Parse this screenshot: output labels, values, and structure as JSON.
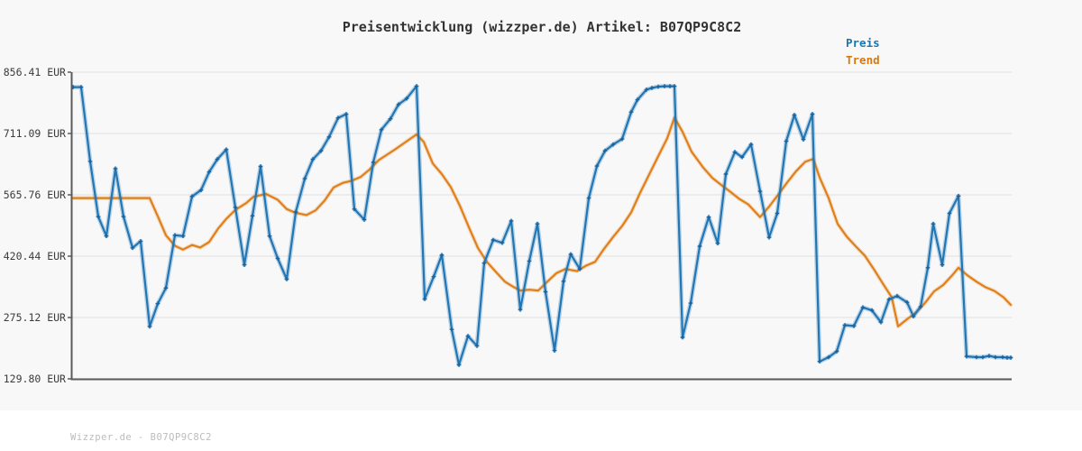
{
  "chart": {
    "title": "Preisentwicklung (wizzper.de) Artikel: B07QP9C8C2",
    "legend_price": "Preis",
    "legend_trend": "Trend",
    "watermark": "Wizzper.de - B07QP9C8C2"
  },
  "colors": {
    "price": "#2276b4",
    "price_marker": "#17639f",
    "trend": "#e0801a",
    "grid": "#e7e7e7",
    "spine": "#5a5a5a",
    "tick_text": "#3b3b3b",
    "title_text": "#333333",
    "legend_price_text": "#1777b4",
    "legend_trend_text": "#d8790e",
    "watermark_text": "#bcbcbc",
    "background": "#f8f8f8",
    "footer_background": "#ffffff"
  },
  "chart_data": {
    "type": "line",
    "title": "Preisentwicklung (wizzper.de) Artikel: B07QP9C8C2",
    "xlabel": "",
    "ylabel": "",
    "unit": "EUR",
    "x_axis_note": "time axis, no tick labels shown; x values are horizontal pixel positions",
    "grid": true,
    "legend_position": "top-right, above plot",
    "y_range": [
      129.8,
      856.41
    ],
    "y_tick_values": [
      856.41,
      711.09,
      565.76,
      420.44,
      275.12,
      129.8
    ],
    "y_tick_labels": [
      "856.41 EUR",
      "711.09 EUR",
      "565.76 EUR",
      "420.44 EUR",
      "275.12 EUR",
      "129.80 EUR"
    ],
    "series": [
      {
        "name": "Preis",
        "color": "#2276b4",
        "markers": true,
        "points": [
          [
            81,
            821
          ],
          [
            90,
            821
          ],
          [
            100,
            645
          ],
          [
            109,
            514
          ],
          [
            118,
            468
          ],
          [
            128,
            628
          ],
          [
            137,
            514
          ],
          [
            147,
            440
          ],
          [
            156,
            456
          ],
          [
            166,
            254
          ],
          [
            175,
            308
          ],
          [
            184,
            345
          ],
          [
            194,
            470
          ],
          [
            203,
            468
          ],
          [
            213,
            562
          ],
          [
            223,
            577
          ],
          [
            232,
            620
          ],
          [
            241,
            650
          ],
          [
            251,
            673
          ],
          [
            261,
            536
          ],
          [
            271,
            400
          ],
          [
            280,
            516
          ],
          [
            289,
            633
          ],
          [
            299,
            468
          ],
          [
            308,
            415
          ],
          [
            318,
            366
          ],
          [
            328,
            525
          ],
          [
            338,
            604
          ],
          [
            347,
            650
          ],
          [
            356,
            670
          ],
          [
            365,
            703
          ],
          [
            375,
            748
          ],
          [
            384,
            757
          ],
          [
            393,
            532
          ],
          [
            404,
            507
          ],
          [
            414,
            643
          ],
          [
            423,
            720
          ],
          [
            433,
            746
          ],
          [
            442,
            780
          ],
          [
            451,
            794
          ],
          [
            462,
            823
          ],
          [
            471,
            319
          ],
          [
            481,
            372
          ],
          [
            490,
            423
          ],
          [
            501,
            247
          ],
          [
            509,
            163
          ],
          [
            519,
            231
          ],
          [
            529,
            208
          ],
          [
            537,
            404
          ],
          [
            547,
            459
          ],
          [
            557,
            452
          ],
          [
            567,
            504
          ],
          [
            577,
            294
          ],
          [
            587,
            409
          ],
          [
            596,
            497
          ],
          [
            605,
            336
          ],
          [
            615,
            197
          ],
          [
            625,
            361
          ],
          [
            633,
            425
          ],
          [
            643,
            390
          ],
          [
            653,
            558
          ],
          [
            662,
            634
          ],
          [
            671,
            670
          ],
          [
            680,
            685
          ],
          [
            690,
            698
          ],
          [
            700,
            762
          ],
          [
            707,
            791
          ],
          [
            717,
            815
          ],
          [
            723,
            819
          ],
          [
            730,
            822
          ],
          [
            737,
            823
          ],
          [
            743,
            823
          ],
          [
            748,
            823
          ],
          [
            757,
            228
          ],
          [
            766,
            309
          ],
          [
            776,
            444
          ],
          [
            786,
            513
          ],
          [
            796,
            451
          ],
          [
            805,
            615
          ],
          [
            815,
            667
          ],
          [
            823,
            655
          ],
          [
            833,
            685
          ],
          [
            843,
            574
          ],
          [
            853,
            465
          ],
          [
            862,
            522
          ],
          [
            872,
            693
          ],
          [
            881,
            755
          ],
          [
            891,
            697
          ],
          [
            901,
            757
          ],
          [
            909,
            171
          ],
          [
            919,
            181
          ],
          [
            928,
            195
          ],
          [
            937,
            257
          ],
          [
            947,
            255
          ],
          [
            957,
            299
          ],
          [
            967,
            292
          ],
          [
            977,
            264
          ],
          [
            986,
            318
          ],
          [
            995,
            326
          ],
          [
            1006,
            311
          ],
          [
            1013,
            278
          ],
          [
            1021,
            301
          ],
          [
            1029,
            393
          ],
          [
            1035,
            497
          ],
          [
            1045,
            400
          ],
          [
            1053,
            522
          ],
          [
            1063,
            563
          ],
          [
            1072,
            183
          ],
          [
            1083,
            181
          ],
          [
            1090,
            181
          ],
          [
            1097,
            184
          ],
          [
            1104,
            181
          ],
          [
            1112,
            181
          ],
          [
            1117,
            180
          ],
          [
            1121,
            180
          ]
        ]
      },
      {
        "name": "Trend",
        "color": "#e0801a",
        "markers": false,
        "points": [
          [
            81,
            558
          ],
          [
            100,
            558
          ],
          [
            120,
            558
          ],
          [
            140,
            558
          ],
          [
            160,
            558
          ],
          [
            166,
            558
          ],
          [
            175,
            515
          ],
          [
            184,
            470
          ],
          [
            194,
            445
          ],
          [
            203,
            436
          ],
          [
            213,
            447
          ],
          [
            222,
            441
          ],
          [
            232,
            454
          ],
          [
            242,
            486
          ],
          [
            251,
            509
          ],
          [
            261,
            530
          ],
          [
            273,
            546
          ],
          [
            281,
            561
          ],
          [
            295,
            568
          ],
          [
            308,
            554
          ],
          [
            318,
            532
          ],
          [
            328,
            523
          ],
          [
            340,
            518
          ],
          [
            350,
            529
          ],
          [
            360,
            552
          ],
          [
            370,
            583
          ],
          [
            380,
            594
          ],
          [
            390,
            599
          ],
          [
            400,
            608
          ],
          [
            410,
            626
          ],
          [
            420,
            648
          ],
          [
            430,
            662
          ],
          [
            440,
            676
          ],
          [
            450,
            691
          ],
          [
            462,
            709
          ],
          [
            470,
            691
          ],
          [
            480,
            640
          ],
          [
            490,
            615
          ],
          [
            500,
            584
          ],
          [
            510,
            540
          ],
          [
            520,
            489
          ],
          [
            530,
            440
          ],
          [
            540,
            407
          ],
          [
            550,
            383
          ],
          [
            560,
            360
          ],
          [
            570,
            347
          ],
          [
            577,
            339
          ],
          [
            587,
            341
          ],
          [
            597,
            339
          ],
          [
            607,
            360
          ],
          [
            617,
            380
          ],
          [
            627,
            390
          ],
          [
            640,
            385
          ],
          [
            650,
            398
          ],
          [
            660,
            407
          ],
          [
            670,
            438
          ],
          [
            680,
            466
          ],
          [
            690,
            492
          ],
          [
            700,
            524
          ],
          [
            710,
            571
          ],
          [
            720,
            614
          ],
          [
            730,
            657
          ],
          [
            740,
            700
          ],
          [
            748,
            749
          ],
          [
            757,
            715
          ],
          [
            767,
            668
          ],
          [
            780,
            630
          ],
          [
            790,
            606
          ],
          [
            800,
            589
          ],
          [
            810,
            573
          ],
          [
            820,
            556
          ],
          [
            830,
            543
          ],
          [
            843,
            513
          ],
          [
            853,
            538
          ],
          [
            863,
            566
          ],
          [
            873,
            595
          ],
          [
            883,
            622
          ],
          [
            893,
            644
          ],
          [
            902,
            651
          ],
          [
            909,
            607
          ],
          [
            919,
            558
          ],
          [
            929,
            497
          ],
          [
            939,
            467
          ],
          [
            949,
            444
          ],
          [
            959,
            422
          ],
          [
            969,
            390
          ],
          [
            979,
            356
          ],
          [
            989,
            323
          ],
          [
            996,
            254
          ],
          [
            1006,
            271
          ],
          [
            1016,
            287
          ],
          [
            1026,
            310
          ],
          [
            1036,
            337
          ],
          [
            1046,
            352
          ],
          [
            1056,
            375
          ],
          [
            1063,
            393
          ],
          [
            1073,
            375
          ],
          [
            1083,
            360
          ],
          [
            1093,
            347
          ],
          [
            1103,
            338
          ],
          [
            1113,
            323
          ],
          [
            1121,
            305
          ]
        ]
      }
    ]
  }
}
